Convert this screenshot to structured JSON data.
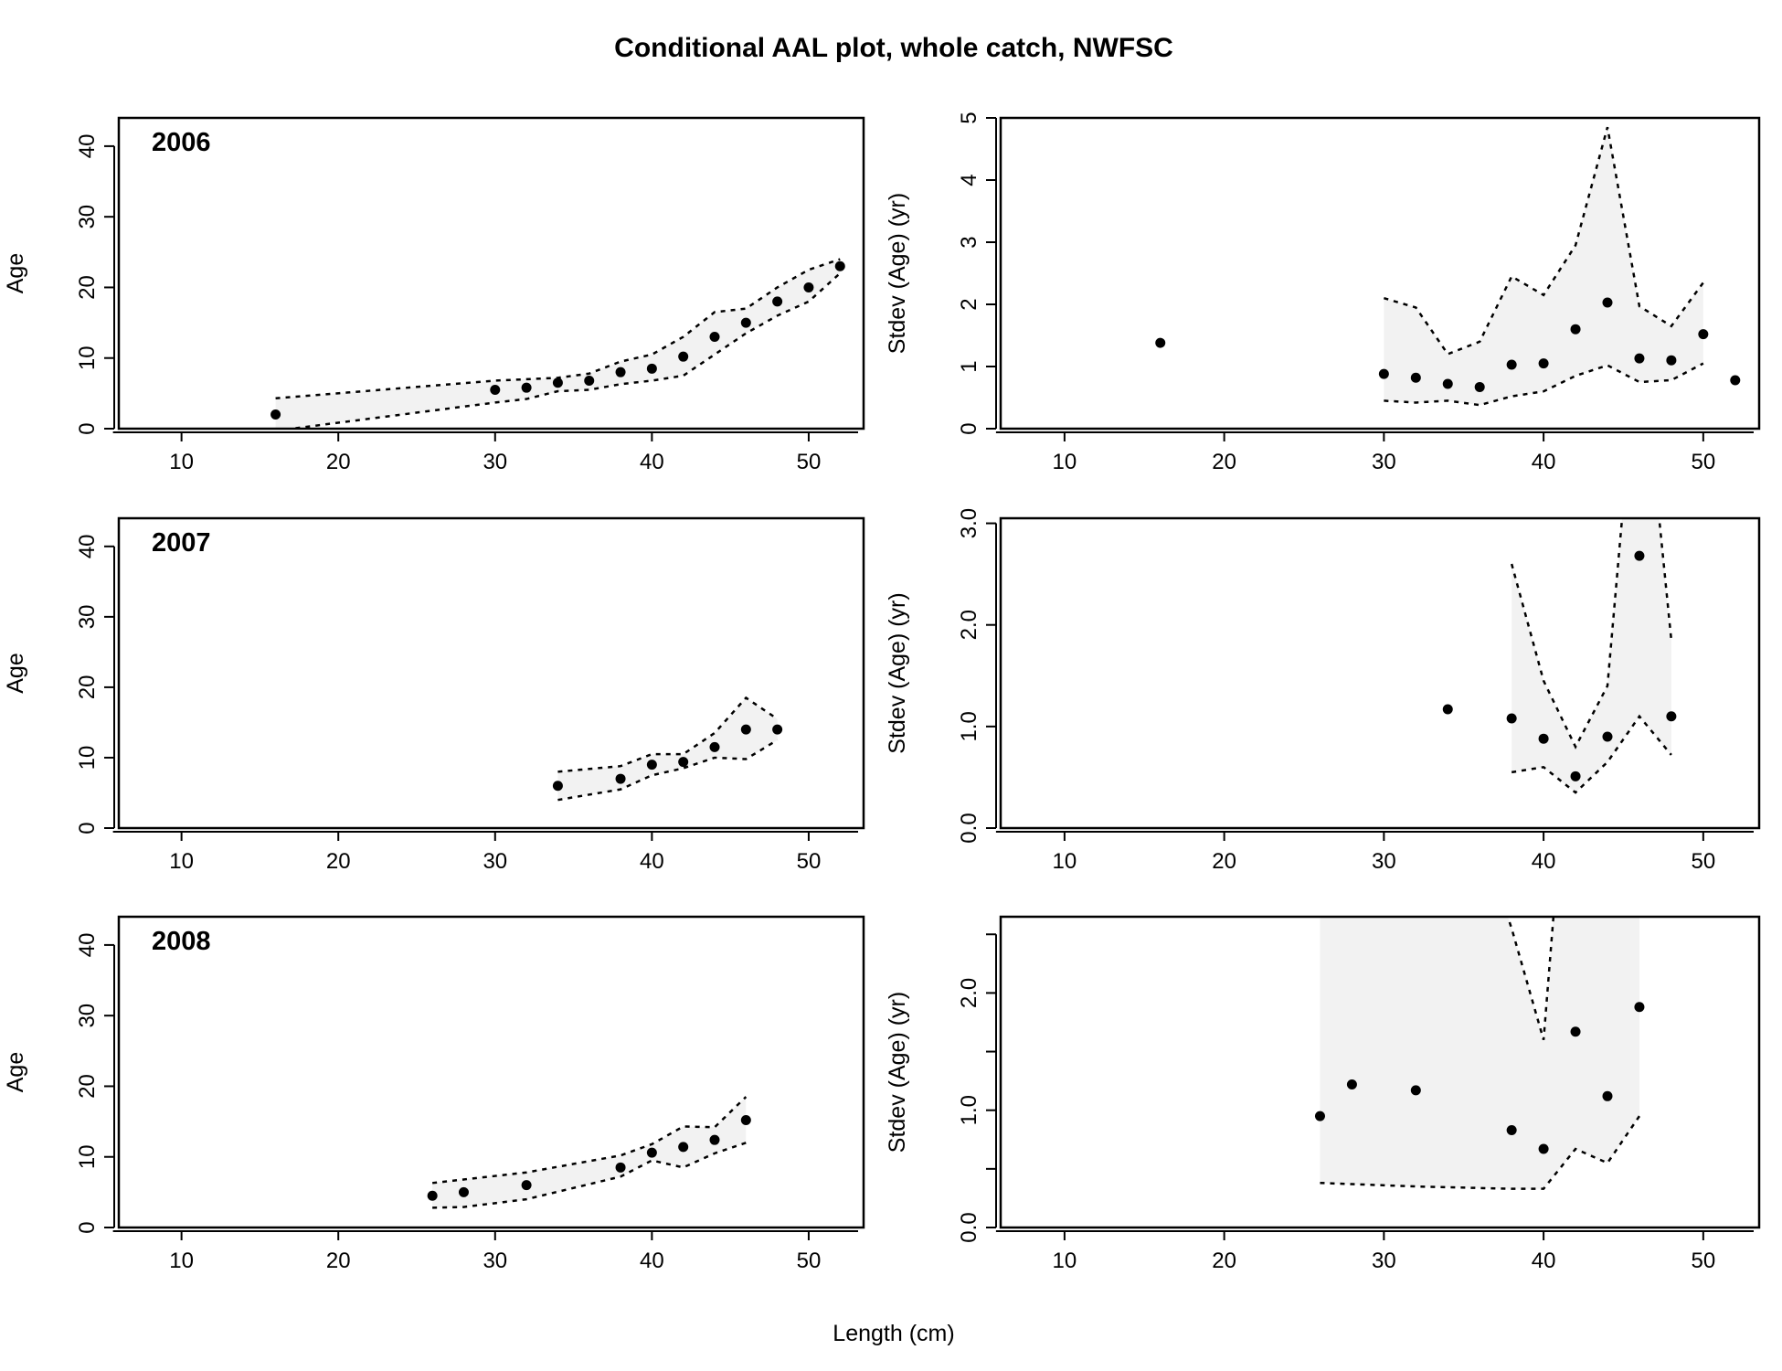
{
  "title": "Conditional AAL plot, whole catch, NWFSC",
  "xlabel": "Length (cm)",
  "colors": {
    "band": "#f2f2f2",
    "points": "#000000",
    "lines": "#000000"
  },
  "chart_data": [
    {
      "type": "scatter",
      "row": 0,
      "col": 0,
      "label": "2006",
      "ylabel": "Age",
      "xlim": [
        6,
        53.5
      ],
      "ylim": [
        0,
        44
      ],
      "xticks": [
        10,
        20,
        30,
        40,
        50
      ],
      "yticks": [
        0,
        10,
        20,
        30,
        40
      ],
      "ytick_labels": [
        "0",
        "10",
        "20",
        "30",
        "40"
      ],
      "points": {
        "x": [
          16,
          30,
          32,
          34,
          36,
          38,
          40,
          42,
          44,
          46,
          48,
          50,
          52
        ],
        "y": [
          2,
          5.5,
          5.8,
          6.5,
          6.8,
          8,
          8.5,
          10.2,
          13,
          15,
          18,
          20,
          23
        ]
      },
      "band_x": [
        16,
        30,
        32,
        34,
        36,
        38,
        40,
        42,
        44,
        46,
        48,
        50,
        52
      ],
      "band_upper": [
        4.3,
        6.8,
        7,
        7.2,
        7.8,
        9.5,
        10.5,
        13,
        16.5,
        17,
        20,
        22.5,
        24
      ],
      "band_lower": [
        -0.3,
        3.7,
        4.2,
        5.3,
        5.5,
        6.3,
        6.8,
        7.5,
        10.5,
        13.5,
        16,
        18,
        22
      ]
    },
    {
      "type": "scatter",
      "row": 0,
      "col": 1,
      "label": "",
      "ylabel": "Stdev (Age) (yr)",
      "xlim": [
        6,
        53.5
      ],
      "ylim": [
        0,
        5
      ],
      "xticks": [
        10,
        20,
        30,
        40,
        50
      ],
      "yticks": [
        0,
        1,
        2,
        3,
        4,
        5
      ],
      "ytick_labels": [
        "0",
        "1",
        "2",
        "3",
        "4",
        "5"
      ],
      "points": {
        "x": [
          16,
          30,
          32,
          34,
          36,
          38,
          40,
          42,
          44,
          46,
          48,
          50,
          52
        ],
        "y": [
          1.38,
          0.88,
          0.82,
          0.72,
          0.67,
          1.03,
          1.05,
          1.6,
          2.03,
          1.13,
          1.1,
          1.52,
          0.78
        ]
      },
      "band_x": [
        30,
        32,
        34,
        36,
        38,
        40,
        42,
        44,
        46,
        48,
        50
      ],
      "band_upper": [
        2.1,
        1.95,
        1.2,
        1.4,
        2.45,
        2.15,
        2.95,
        4.85,
        1.97,
        1.65,
        2.35
      ],
      "band_lower": [
        0.45,
        0.42,
        0.45,
        0.38,
        0.52,
        0.6,
        0.85,
        1.02,
        0.75,
        0.78,
        1.05
      ]
    },
    {
      "type": "scatter",
      "row": 1,
      "col": 0,
      "label": "2007",
      "ylabel": "Age",
      "xlim": [
        6,
        53.5
      ],
      "ylim": [
        0,
        44
      ],
      "xticks": [
        10,
        20,
        30,
        40,
        50
      ],
      "yticks": [
        0,
        10,
        20,
        30,
        40
      ],
      "ytick_labels": [
        "0",
        "10",
        "20",
        "30",
        "40"
      ],
      "points": {
        "x": [
          34,
          38,
          40,
          42,
          44,
          46,
          48
        ],
        "y": [
          6,
          7,
          9,
          9.4,
          11.5,
          14,
          14
        ]
      },
      "band_x": [
        34,
        38,
        40,
        42,
        44,
        46,
        48
      ],
      "band_upper": [
        8,
        8.8,
        10.5,
        10.5,
        13.5,
        18.5,
        15.5
      ],
      "band_lower": [
        4,
        5.5,
        7.5,
        8.5,
        10,
        9.8,
        12.5
      ]
    },
    {
      "type": "scatter",
      "row": 1,
      "col": 1,
      "label": "",
      "ylabel": "Stdev (Age) (yr)",
      "xlim": [
        6,
        53.5
      ],
      "ylim": [
        0,
        3.05
      ],
      "xticks": [
        10,
        20,
        30,
        40,
        50
      ],
      "yticks": [
        0,
        1,
        2,
        3
      ],
      "ytick_labels": [
        "0.0",
        "1.0",
        "2.0",
        "3.0"
      ],
      "points": {
        "x": [
          34,
          38,
          40,
          42,
          44,
          46,
          48
        ],
        "y": [
          1.17,
          1.08,
          0.88,
          0.51,
          0.9,
          2.68,
          1.1
        ]
      },
      "band_x": [
        38,
        40,
        42,
        44,
        46,
        48
      ],
      "band_upper": [
        2.6,
        1.45,
        0.8,
        1.4,
        5,
        1.85
      ],
      "band_lower": [
        0.55,
        0.6,
        0.35,
        0.65,
        1.1,
        0.72
      ]
    },
    {
      "type": "scatter",
      "row": 2,
      "col": 0,
      "label": "2008",
      "ylabel": "Age",
      "xlim": [
        6,
        53.5
      ],
      "ylim": [
        0,
        44
      ],
      "xticks": [
        10,
        20,
        30,
        40,
        50
      ],
      "yticks": [
        0,
        10,
        20,
        30,
        40
      ],
      "ytick_labels": [
        "0",
        "10",
        "20",
        "30",
        "40"
      ],
      "points": {
        "x": [
          26,
          28,
          32,
          38,
          40,
          42,
          44,
          46
        ],
        "y": [
          4.5,
          5,
          6,
          8.5,
          10.6,
          11.4,
          12.4,
          15.2
        ]
      },
      "band_x": [
        26,
        28,
        32,
        38,
        40,
        42,
        44,
        46
      ],
      "band_upper": [
        6.3,
        6.8,
        7.8,
        10.2,
        11.8,
        14.3,
        14.2,
        18.5
      ],
      "band_lower": [
        2.8,
        2.9,
        4,
        7.2,
        9.5,
        8.5,
        10.5,
        12
      ]
    },
    {
      "type": "scatter",
      "row": 2,
      "col": 1,
      "label": "",
      "ylabel": "Stdev (Age) (yr)",
      "xlim": [
        6,
        53.5
      ],
      "ylim": [
        0,
        2.65
      ],
      "xticks": [
        10,
        20,
        30,
        40,
        50
      ],
      "yticks": [
        0,
        0.5,
        1,
        1.5,
        2,
        2.5
      ],
      "ytick_labels": [
        "0.0",
        "",
        "1.0",
        "",
        "2.0",
        ""
      ],
      "points": {
        "x": [
          26,
          28,
          32,
          38,
          40,
          42,
          44,
          46
        ],
        "y": [
          0.95,
          1.22,
          1.17,
          0.83,
          0.67,
          1.67,
          1.12,
          1.88
        ]
      },
      "band_x": [
        26,
        28,
        32,
        38,
        40,
        42,
        44,
        46
      ],
      "band_upper": [
        5,
        5,
        5,
        2.55,
        1.6,
        5,
        5,
        5
      ],
      "band_lower": [
        0.38,
        0.37,
        0.35,
        0.33,
        0.33,
        0.67,
        0.55,
        0.95
      ]
    }
  ]
}
